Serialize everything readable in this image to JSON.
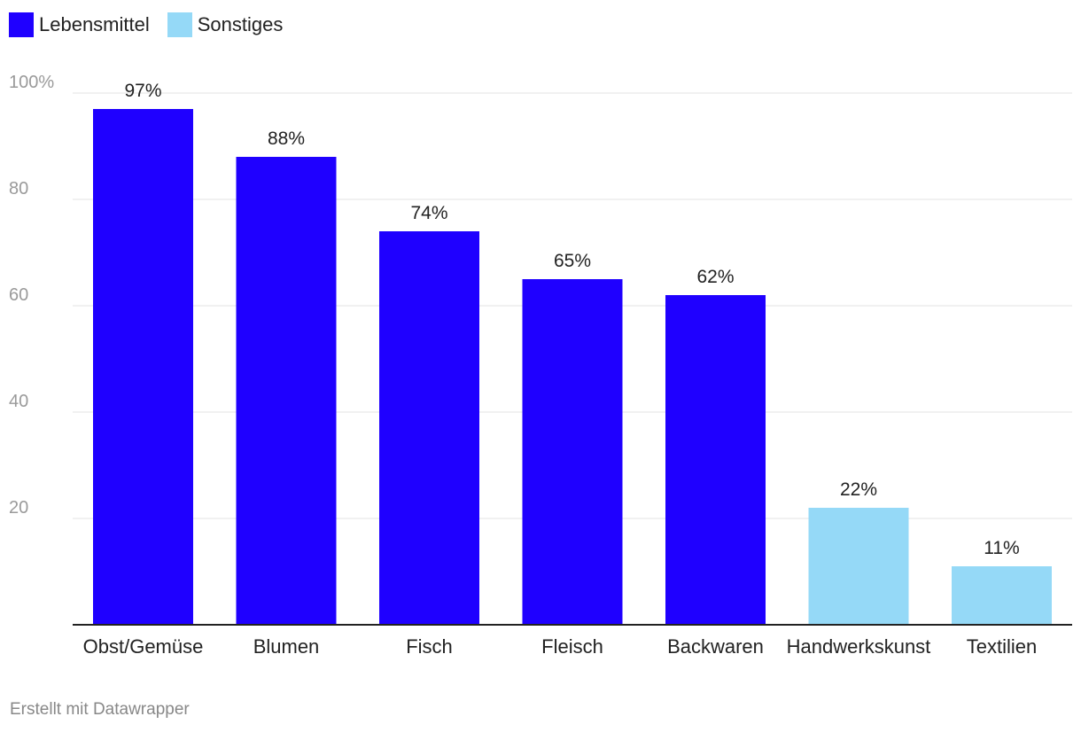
{
  "chart_data": {
    "type": "bar",
    "categories": [
      "Obst/Gemüse",
      "Blumen",
      "Fisch",
      "Fleisch",
      "Backwaren",
      "Handwerkskunst",
      "Textilien"
    ],
    "values": [
      97,
      88,
      74,
      65,
      62,
      22,
      11
    ],
    "value_labels": [
      "97%",
      "88%",
      "74%",
      "65%",
      "62%",
      "22%",
      "11%"
    ],
    "groups": [
      "Lebensmittel",
      "Lebensmittel",
      "Lebensmittel",
      "Lebensmittel",
      "Lebensmittel",
      "Sonstiges",
      "Sonstiges"
    ],
    "legend": [
      {
        "name": "Lebensmittel",
        "color": "#1f00ff"
      },
      {
        "name": "Sonstiges",
        "color": "#95d9f7"
      }
    ],
    "y_ticks": [
      20,
      40,
      60,
      80,
      100
    ],
    "y_tick_labels": [
      "20",
      "40",
      "60",
      "80",
      "100%"
    ],
    "ylim": [
      0,
      100
    ],
    "grid": true,
    "legend_position": "top-left",
    "xlabel": "",
    "ylabel": "",
    "title": ""
  },
  "footer": {
    "credit": "Erstellt mit Datawrapper"
  },
  "colors": {
    "grid": "#e3e3e3",
    "axis": "#222222",
    "tick_label": "#9a9a9a",
    "text": "#222222"
  }
}
